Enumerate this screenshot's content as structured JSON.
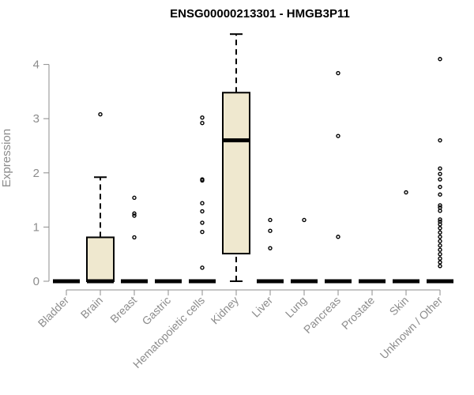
{
  "chart_data": {
    "type": "boxplot",
    "title": "ENSG00000213301 - HMGB3P11",
    "xlabel": "",
    "ylabel": "Expression",
    "ylim": [
      0,
      4.6
    ],
    "yticks": [
      0,
      1,
      2,
      3,
      4
    ],
    "box_fill": "#efe8cf",
    "categories": [
      "Bladder",
      "Brain",
      "Breast",
      "Gastric",
      "Hematopoietic cells",
      "Kidney",
      "Liver",
      "Lung",
      "Pancreas",
      "Prostate",
      "Skin",
      "Unknown / Other"
    ],
    "boxes": [
      {
        "category": "Bladder",
        "min": 0,
        "q1": 0,
        "median": 0,
        "q3": 0,
        "max": 0,
        "outliers": []
      },
      {
        "category": "Brain",
        "min": 0,
        "q1": 0,
        "median": 0,
        "q3": 0.81,
        "max": 1.92,
        "outliers": [
          3.08
        ]
      },
      {
        "category": "Breast",
        "min": 0,
        "q1": 0,
        "median": 0,
        "q3": 0,
        "max": 0,
        "outliers": [
          1.54,
          1.25,
          1.21,
          0.81
        ]
      },
      {
        "category": "Gastric",
        "min": 0,
        "q1": 0,
        "median": 0,
        "q3": 0,
        "max": 0,
        "outliers": []
      },
      {
        "category": "Hematopoietic cells",
        "min": 0,
        "q1": 0,
        "median": 0,
        "q3": 0,
        "max": 0,
        "outliers": [
          3.02,
          2.92,
          1.88,
          1.86,
          1.44,
          1.29,
          1.08,
          0.91,
          0.25
        ]
      },
      {
        "category": "Kidney",
        "min": 0,
        "q1": 0.51,
        "median": 2.6,
        "q3": 3.48,
        "max": 4.56,
        "outliers": []
      },
      {
        "category": "Liver",
        "min": 0,
        "q1": 0,
        "median": 0,
        "q3": 0,
        "max": 0,
        "outliers": [
          1.13,
          0.93,
          0.61
        ]
      },
      {
        "category": "Lung",
        "min": 0,
        "q1": 0,
        "median": 0,
        "q3": 0,
        "max": 0,
        "outliers": [
          1.13
        ]
      },
      {
        "category": "Pancreas",
        "min": 0,
        "q1": 0,
        "median": 0,
        "q3": 0,
        "max": 0,
        "outliers": [
          3.84,
          2.68,
          0.82
        ]
      },
      {
        "category": "Prostate",
        "min": 0,
        "q1": 0,
        "median": 0,
        "q3": 0,
        "max": 0,
        "outliers": []
      },
      {
        "category": "Skin",
        "min": 0,
        "q1": 0,
        "median": 0,
        "q3": 0,
        "max": 0,
        "outliers": [
          1.64
        ]
      },
      {
        "category": "Unknown / Other",
        "min": 0,
        "q1": 0,
        "median": 0,
        "q3": 0,
        "max": 0,
        "outliers": [
          4.1,
          2.6,
          2.08,
          1.98,
          1.88,
          1.74,
          1.6,
          1.4,
          1.36,
          1.3,
          1.14,
          1.1,
          1.05,
          0.98,
          0.9,
          0.82,
          0.74,
          0.66,
          0.58,
          0.5,
          0.42,
          0.35,
          0.28
        ]
      }
    ]
  }
}
